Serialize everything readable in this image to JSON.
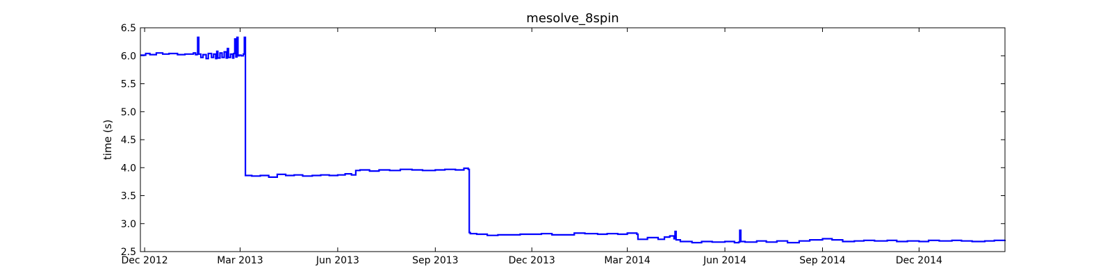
{
  "chart_data": {
    "type": "line",
    "title": "mesolve_8spin",
    "xlabel": "",
    "ylabel": "time (s)",
    "xlim": [
      "2012-11-27",
      "2015-02-20"
    ],
    "ylim": [
      2.5,
      6.5
    ],
    "yticks": [
      2.5,
      3.0,
      3.5,
      4.0,
      4.5,
      5.0,
      5.5,
      6.0,
      6.5
    ],
    "ytick_labels": [
      "2.5",
      "3.0",
      "3.5",
      "4.0",
      "4.5",
      "5.0",
      "5.5",
      "6.0",
      "6.5"
    ],
    "xticks": [
      "2012-12-01",
      "2013-03-01",
      "2013-06-01",
      "2013-09-01",
      "2013-12-01",
      "2014-03-01",
      "2014-06-01",
      "2014-09-01",
      "2014-12-01"
    ],
    "xtick_labels": [
      "Dec 2012",
      "Mar 2013",
      "Jun 2013",
      "Sep 2013",
      "Dec 2013",
      "Mar 2014",
      "Jun 2014",
      "Sep 2014",
      "Dec 2014"
    ],
    "grid": false,
    "legend": "none",
    "colors": {
      "line": "#0000ff",
      "axes": "#000000",
      "background": "#ffffff"
    },
    "series": [
      {
        "x": [
          "2012-11-27",
          "2012-12-02",
          "2012-12-06",
          "2012-12-12",
          "2012-12-18",
          "2012-12-24",
          "2013-01-01",
          "2013-01-08",
          "2013-01-16",
          "2013-01-18",
          "2013-01-20",
          "2013-01-20",
          "2013-01-21",
          "2013-01-23",
          "2013-01-25",
          "2013-01-28",
          "2013-01-30",
          "2013-02-02",
          "2013-02-04",
          "2013-02-06",
          "2013-02-07",
          "2013-02-08",
          "2013-02-10",
          "2013-02-12",
          "2013-02-14",
          "2013-02-16",
          "2013-02-17",
          "2013-02-18",
          "2013-02-20",
          "2013-02-22",
          "2013-02-23",
          "2013-02-24",
          "2013-02-25",
          "2013-02-26",
          "2013-02-27",
          "2013-02-28",
          "2013-03-02",
          "2013-03-04",
          "2013-03-05",
          "2013-03-06",
          "2013-03-06",
          "2013-03-12",
          "2013-03-20",
          "2013-03-28",
          "2013-04-05",
          "2013-04-13",
          "2013-04-21",
          "2013-04-29",
          "2013-05-08",
          "2013-05-16",
          "2013-05-24",
          "2013-06-01",
          "2013-06-08",
          "2013-06-14",
          "2013-06-18",
          "2013-06-22",
          "2013-07-01",
          "2013-07-10",
          "2013-07-20",
          "2013-07-30",
          "2013-08-10",
          "2013-08-20",
          "2013-09-01",
          "2013-09-10",
          "2013-09-20",
          "2013-09-28",
          "2013-10-02",
          "2013-10-03",
          "2013-10-04",
          "2013-10-10",
          "2013-10-20",
          "2013-10-30",
          "2013-11-10",
          "2013-11-20",
          "2013-12-01",
          "2013-12-10",
          "2013-12-20",
          "2014-01-01",
          "2014-01-10",
          "2014-01-20",
          "2014-02-01",
          "2014-02-10",
          "2014-02-20",
          "2014-03-01",
          "2014-03-10",
          "2014-03-11",
          "2014-03-20",
          "2014-03-30",
          "2014-04-05",
          "2014-04-10",
          "2014-04-14",
          "2014-04-15",
          "2014-04-16",
          "2014-04-20",
          "2014-05-01",
          "2014-05-10",
          "2014-05-20",
          "2014-06-01",
          "2014-06-10",
          "2014-06-14",
          "2014-06-15",
          "2014-06-16",
          "2014-06-20",
          "2014-07-01",
          "2014-07-10",
          "2014-07-20",
          "2014-07-30",
          "2014-08-10",
          "2014-08-20",
          "2014-09-01",
          "2014-09-10",
          "2014-09-20",
          "2014-10-01",
          "2014-10-10",
          "2014-10-20",
          "2014-11-01",
          "2014-11-10",
          "2014-11-20",
          "2014-12-01",
          "2014-12-10",
          "2014-12-20",
          "2015-01-01",
          "2015-01-10",
          "2015-01-20",
          "2015-02-01",
          "2015-02-10",
          "2015-02-20"
        ],
        "y": [
          6.01,
          6.04,
          6.02,
          6.05,
          6.03,
          6.04,
          6.02,
          6.03,
          6.05,
          6.02,
          6.01,
          6.33,
          6.03,
          5.97,
          6.02,
          5.95,
          6.04,
          5.97,
          6.03,
          5.95,
          6.08,
          5.96,
          6.05,
          5.97,
          6.07,
          5.96,
          6.13,
          5.97,
          6.03,
          5.96,
          6.04,
          6.3,
          5.98,
          6.33,
          6.0,
          6.01,
          6.0,
          6.03,
          6.33,
          6.0,
          3.86,
          3.85,
          3.86,
          3.83,
          3.88,
          3.86,
          3.87,
          3.85,
          3.86,
          3.87,
          3.86,
          3.87,
          3.89,
          3.87,
          3.95,
          3.96,
          3.94,
          3.96,
          3.95,
          3.97,
          3.96,
          3.95,
          3.96,
          3.97,
          3.96,
          3.99,
          3.97,
          2.84,
          2.82,
          2.81,
          2.79,
          2.8,
          2.8,
          2.81,
          2.81,
          2.82,
          2.8,
          2.8,
          2.83,
          2.82,
          2.81,
          2.82,
          2.81,
          2.83,
          2.81,
          2.72,
          2.75,
          2.72,
          2.76,
          2.78,
          2.73,
          2.86,
          2.71,
          2.68,
          2.66,
          2.68,
          2.67,
          2.68,
          2.66,
          2.67,
          2.88,
          2.68,
          2.67,
          2.69,
          2.67,
          2.69,
          2.66,
          2.69,
          2.71,
          2.73,
          2.71,
          2.68,
          2.69,
          2.7,
          2.69,
          2.7,
          2.68,
          2.69,
          2.68,
          2.7,
          2.69,
          2.7,
          2.69,
          2.68,
          2.69,
          2.7,
          2.71
        ]
      }
    ]
  }
}
